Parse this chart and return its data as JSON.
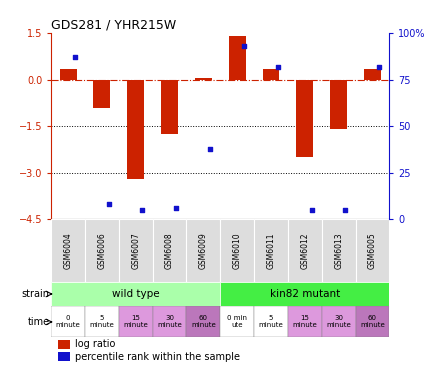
{
  "title": "GDS281 / YHR215W",
  "samples": [
    "GSM6004",
    "GSM6006",
    "GSM6007",
    "GSM6008",
    "GSM6009",
    "GSM6010",
    "GSM6011",
    "GSM6012",
    "GSM6013",
    "GSM6005"
  ],
  "log_ratio": [
    0.35,
    -0.9,
    -3.2,
    -1.75,
    0.05,
    1.4,
    0.35,
    -2.5,
    -1.6,
    0.35
  ],
  "percentile": [
    87,
    8,
    5,
    6,
    38,
    93,
    82,
    5,
    5,
    82
  ],
  "ylim_left": [
    -4.5,
    1.5
  ],
  "ylim_right": [
    0,
    100
  ],
  "yticks_left": [
    1.5,
    0,
    -1.5,
    -3,
    -4.5
  ],
  "yticks_right": [
    100,
    75,
    50,
    25,
    0
  ],
  "bar_color": "#cc2200",
  "dot_color": "#1111cc",
  "dotted_lines": [
    -1.5,
    -3
  ],
  "strain_wt": "wild type",
  "strain_mut": "kin82 mutant",
  "wt_color": "#aaffaa",
  "mut_color": "#44ee44",
  "time_colors": [
    "#ffffff",
    "#ffffff",
    "#dd99dd",
    "#dd99dd",
    "#bb77bb",
    "#ffffff",
    "#ffffff",
    "#dd99dd",
    "#dd99dd",
    "#bb77bb"
  ],
  "time_labels_line1": [
    "0",
    "5",
    "15",
    "30",
    "60",
    "0 min",
    "5",
    "15",
    "30",
    "60"
  ],
  "time_labels_line2": [
    "minute",
    "minute",
    "minute",
    "minute",
    "minute",
    "ute",
    "minute",
    "minute",
    "minute",
    "minute"
  ],
  "legend_red": "log ratio",
  "legend_blue": "percentile rank within the sample",
  "tick_color_left": "#cc2200",
  "tick_color_right": "#1111cc"
}
